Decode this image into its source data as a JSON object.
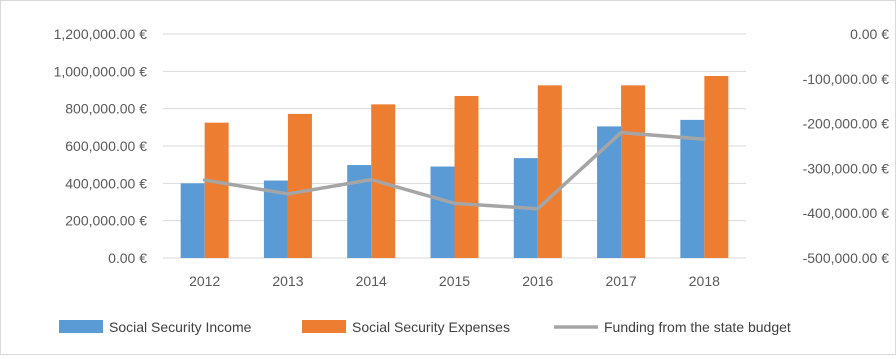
{
  "chart_data": {
    "type": "bar",
    "categories": [
      "2012",
      "2013",
      "2014",
      "2015",
      "2016",
      "2017",
      "2018"
    ],
    "series": [
      {
        "name": "Social Security Income",
        "type": "bar",
        "axis": "left",
        "color": "#5b9bd5",
        "values": [
          400000,
          415000,
          498000,
          490000,
          535000,
          705000,
          740000
        ]
      },
      {
        "name": "Social Security Expenses",
        "type": "bar",
        "axis": "left",
        "color": "#ed7d31",
        "values": [
          725000,
          772000,
          823000,
          868000,
          925000,
          925000,
          975000
        ]
      },
      {
        "name": "Funding from the state budget",
        "type": "line",
        "axis": "right",
        "color": "#a5a5a5",
        "values": [
          -326000,
          -357000,
          -325000,
          -378000,
          -390000,
          -220000,
          -235000
        ]
      }
    ],
    "y_left": {
      "ylim": [
        0,
        1200000
      ],
      "ticks": [
        0,
        200000,
        400000,
        600000,
        800000,
        1000000,
        1200000
      ],
      "tick_labels": [
        "0.00 €",
        "200,000.00 €",
        "400,000.00 €",
        "600,000.00 €",
        "800,000.00 €",
        "1,000,000.00 €",
        "1,200,000.00 €"
      ]
    },
    "y_right": {
      "ylim": [
        -500000,
        0
      ],
      "ticks": [
        -500000,
        -400000,
        -300000,
        -200000,
        -100000,
        0
      ],
      "tick_labels": [
        "-500,000.00 €",
        "-400,000.00 €",
        "-300,000.00 €",
        "-200,000.00 €",
        "-100,000.00 €",
        "0.00 €"
      ]
    },
    "grid": true,
    "legend_position": "bottom",
    "gridline_color": "#d9d9d9"
  }
}
